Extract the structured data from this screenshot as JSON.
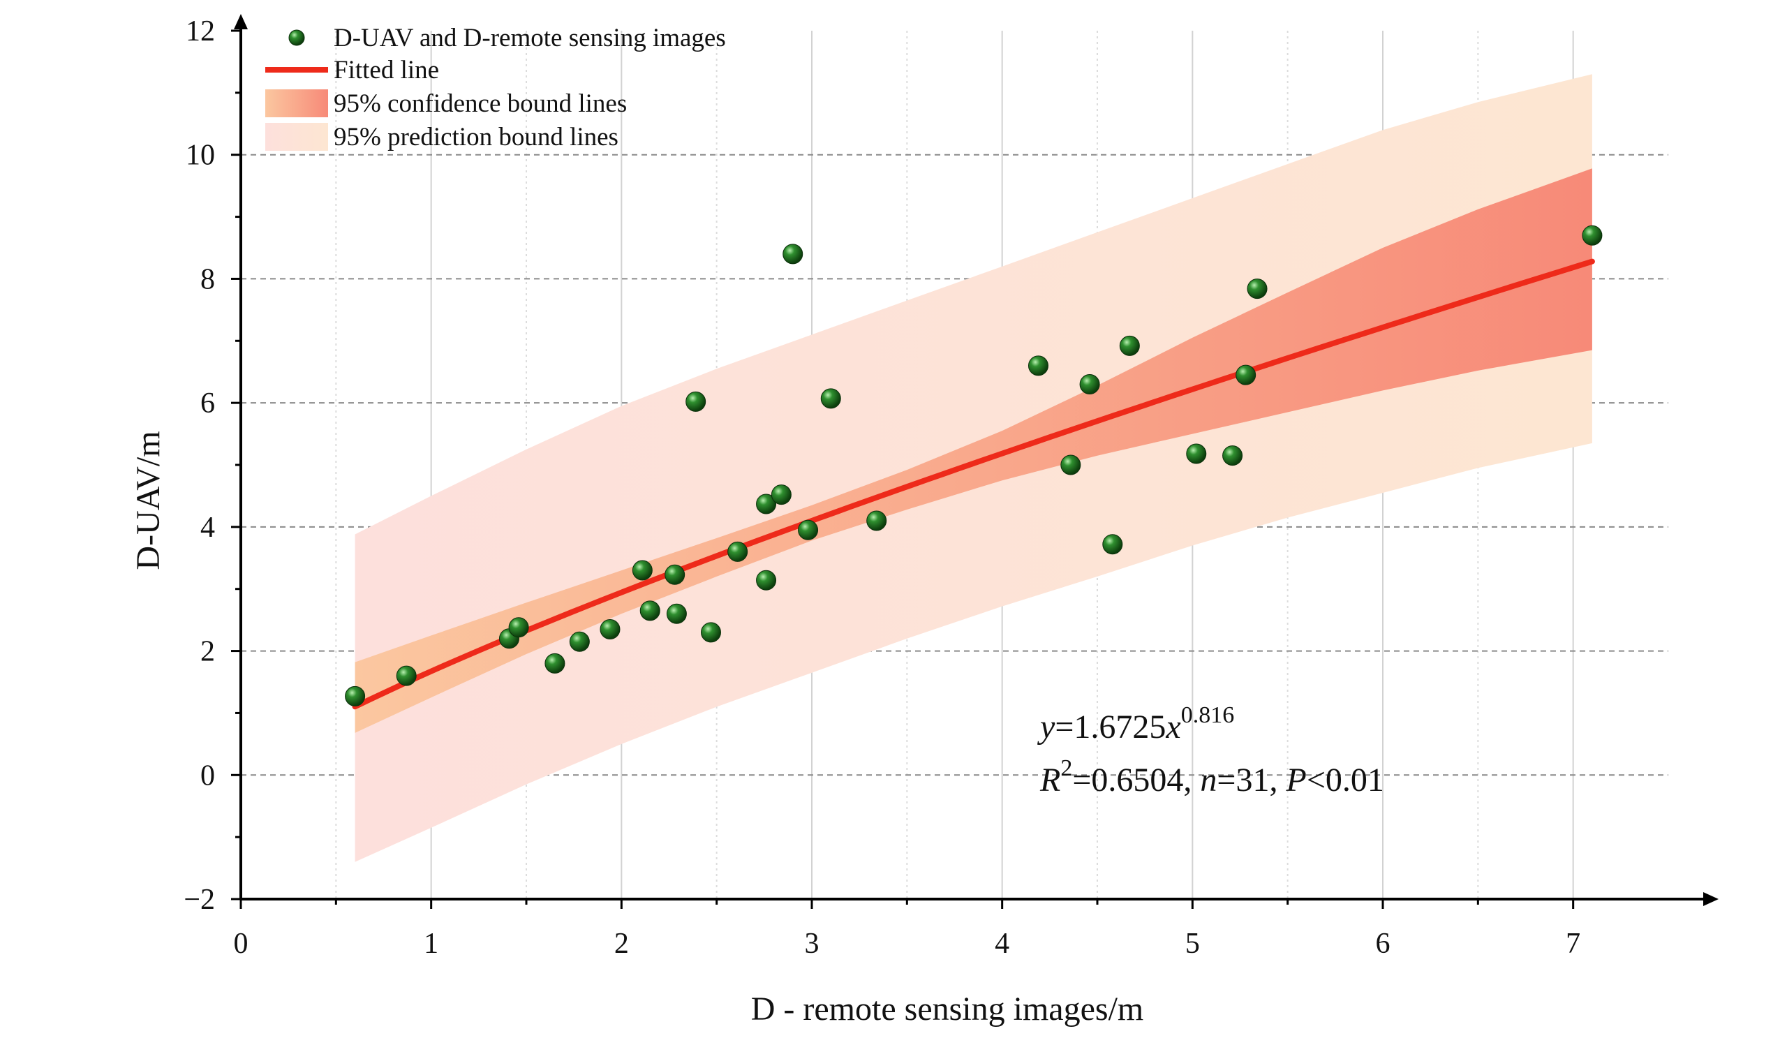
{
  "chart_data": {
    "type": "scatter",
    "xlabel": "D - remote sensing images/m",
    "ylabel": "D-UAV/m",
    "xlim": [
      0,
      7.5
    ],
    "ylim": [
      -2,
      12
    ],
    "x_ticks": [
      0,
      1,
      2,
      3,
      4,
      5,
      6,
      7
    ],
    "y_ticks": [
      -2,
      0,
      2,
      4,
      6,
      8,
      10,
      12
    ],
    "x_tick_labels": [
      "0",
      "1",
      "2",
      "3",
      "4",
      "5",
      "6",
      "7"
    ],
    "y_tick_labels": [
      "−2",
      "0",
      "2",
      "4",
      "6",
      "8",
      "10",
      "12"
    ],
    "grid": "vertical solid light-gray, horizontal dashed gray",
    "legend_position": "top-left",
    "legend": [
      {
        "label": "D-UAV and D-remote sensing images",
        "kind": "marker",
        "color": "#1e6b1e"
      },
      {
        "label": "Fitted line",
        "kind": "line",
        "color": "#ee2a1a"
      },
      {
        "label": "95% confidence bound lines",
        "kind": "band",
        "color": "#f7a07a"
      },
      {
        "label": "95% prediction bound lines",
        "kind": "band",
        "color": "#fde3d6"
      }
    ],
    "series": [
      {
        "name": "D-UAV and D-remote sensing images",
        "type": "scatter",
        "points": [
          [
            0.6,
            1.27
          ],
          [
            0.87,
            1.6
          ],
          [
            1.41,
            2.2
          ],
          [
            1.46,
            2.38
          ],
          [
            1.65,
            1.8
          ],
          [
            1.78,
            2.15
          ],
          [
            1.94,
            2.35
          ],
          [
            2.11,
            3.3
          ],
          [
            2.15,
            2.65
          ],
          [
            2.28,
            3.23
          ],
          [
            2.29,
            2.6
          ],
          [
            2.39,
            6.02
          ],
          [
            2.47,
            2.3
          ],
          [
            2.61,
            3.6
          ],
          [
            2.76,
            4.37
          ],
          [
            2.76,
            3.14
          ],
          [
            2.84,
            4.52
          ],
          [
            2.9,
            8.4
          ],
          [
            2.98,
            3.95
          ],
          [
            3.1,
            6.07
          ],
          [
            3.34,
            4.1
          ],
          [
            4.19,
            6.6
          ],
          [
            4.36,
            5.0
          ],
          [
            4.46,
            6.3
          ],
          [
            4.58,
            3.72
          ],
          [
            4.67,
            6.92
          ],
          [
            5.02,
            5.18
          ],
          [
            5.21,
            5.15
          ],
          [
            5.28,
            6.45
          ],
          [
            5.34,
            7.84
          ],
          [
            7.1,
            8.7
          ]
        ],
        "color": "#1e6b1e"
      },
      {
        "name": "Fitted line",
        "type": "line",
        "equation_coef": 1.6725,
        "equation_exp": 0.816,
        "x_range": [
          0.6,
          7.1
        ],
        "color": "#ee2a1a"
      },
      {
        "name": "95% confidence bound lines",
        "type": "band",
        "x": [
          0.6,
          1.0,
          1.5,
          2.0,
          2.5,
          3.0,
          3.5,
          4.0,
          4.5,
          5.0,
          5.5,
          6.0,
          6.5,
          7.1
        ],
        "lower": [
          0.68,
          1.25,
          1.95,
          2.6,
          3.2,
          3.78,
          4.28,
          4.75,
          5.15,
          5.5,
          5.85,
          6.2,
          6.52,
          6.85
        ],
        "upper": [
          1.82,
          2.25,
          2.78,
          3.3,
          3.82,
          4.35,
          4.92,
          5.55,
          6.28,
          7.05,
          7.78,
          8.5,
          9.12,
          9.78
        ],
        "color": "#f7a07a"
      },
      {
        "name": "95% prediction bound lines",
        "type": "band",
        "x": [
          0.6,
          1.0,
          1.5,
          2.0,
          2.5,
          3.0,
          3.5,
          4.0,
          4.5,
          5.0,
          5.5,
          6.0,
          6.5,
          7.1
        ],
        "lower": [
          -1.4,
          -0.85,
          -0.15,
          0.5,
          1.1,
          1.65,
          2.2,
          2.72,
          3.2,
          3.7,
          4.15,
          4.55,
          4.95,
          5.35
        ],
        "upper": [
          3.88,
          4.5,
          5.25,
          5.95,
          6.55,
          7.1,
          7.65,
          8.2,
          8.75,
          9.3,
          9.85,
          10.4,
          10.85,
          11.3
        ],
        "color": "#fde3d6"
      }
    ],
    "annotations": {
      "equation": {
        "y": "y",
        "eq": "=1.6725",
        "x": "x",
        "exp": "0.816"
      },
      "stats": {
        "r": "R",
        "r_sup": "2",
        "r_val": "=0.6504, ",
        "n": "n",
        "n_val": "=31, ",
        "p": "P",
        "p_val": "<0.01"
      }
    }
  }
}
